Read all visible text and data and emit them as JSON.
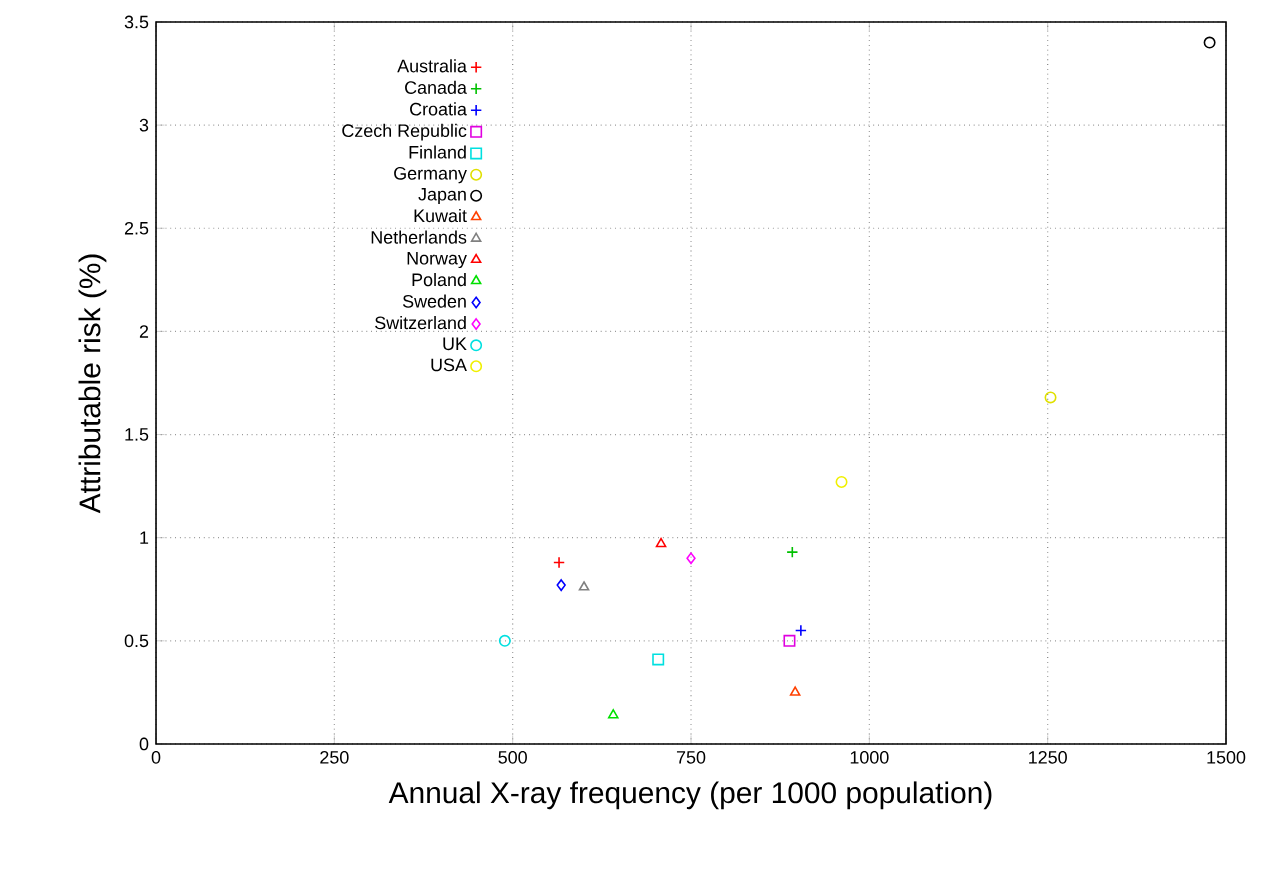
{
  "chart_data": {
    "type": "scatter",
    "xlabel": "Annual X-ray frequency (per 1000 population)",
    "ylabel": "Attributable risk (%)",
    "xlim": [
      0,
      1500
    ],
    "ylim": [
      0,
      3.5
    ],
    "xticks": [
      0,
      250,
      500,
      750,
      1000,
      1250,
      1500
    ],
    "yticks": [
      0,
      0.5,
      1,
      1.5,
      2,
      2.5,
      3,
      3.5
    ],
    "grid": true,
    "legend": "top left",
    "series": [
      {
        "name": "Australia",
        "color": "#ff0000",
        "marker": "cross",
        "x": [
          565
        ],
        "values": [
          0.88
        ]
      },
      {
        "name": "Canada",
        "color": "#00c000",
        "marker": "cross",
        "x": [
          892
        ],
        "values": [
          0.93
        ]
      },
      {
        "name": "Croatia",
        "color": "#0000ff",
        "marker": "cross",
        "x": [
          904
        ],
        "values": [
          0.55
        ]
      },
      {
        "name": "Czech Republic",
        "color": "#e000e0",
        "marker": "square",
        "x": [
          888
        ],
        "values": [
          0.5
        ]
      },
      {
        "name": "Finland",
        "color": "#00e0e0",
        "marker": "square",
        "x": [
          704
        ],
        "values": [
          0.41
        ]
      },
      {
        "name": "Germany",
        "color": "#e0e000",
        "marker": "circle",
        "x": [
          1254
        ],
        "values": [
          1.68
        ]
      },
      {
        "name": "Japan",
        "color": "#000000",
        "marker": "circle",
        "x": [
          1477
        ],
        "values": [
          3.4
        ]
      },
      {
        "name": "Kuwait",
        "color": "#ff4000",
        "marker": "triangle",
        "x": [
          896
        ],
        "values": [
          0.25
        ]
      },
      {
        "name": "Netherlands",
        "color": "#808080",
        "marker": "triangle",
        "x": [
          600
        ],
        "values": [
          0.76
        ]
      },
      {
        "name": "Norway",
        "color": "#ff0000",
        "marker": "triangle",
        "x": [
          708
        ],
        "values": [
          0.97
        ]
      },
      {
        "name": "Poland",
        "color": "#00e000",
        "marker": "triangle",
        "x": [
          641
        ],
        "values": [
          0.14
        ]
      },
      {
        "name": "Sweden",
        "color": "#0000ff",
        "marker": "diamond",
        "x": [
          568
        ],
        "values": [
          0.77
        ]
      },
      {
        "name": "Switzerland",
        "color": "#ff00ff",
        "marker": "diamond",
        "x": [
          750
        ],
        "values": [
          0.9
        ]
      },
      {
        "name": "UK",
        "color": "#00e0e0",
        "marker": "circle",
        "x": [
          489
        ],
        "values": [
          0.5
        ]
      },
      {
        "name": "USA",
        "color": "#f0f000",
        "marker": "circle",
        "x": [
          961
        ],
        "values": [
          1.27
        ]
      }
    ]
  }
}
